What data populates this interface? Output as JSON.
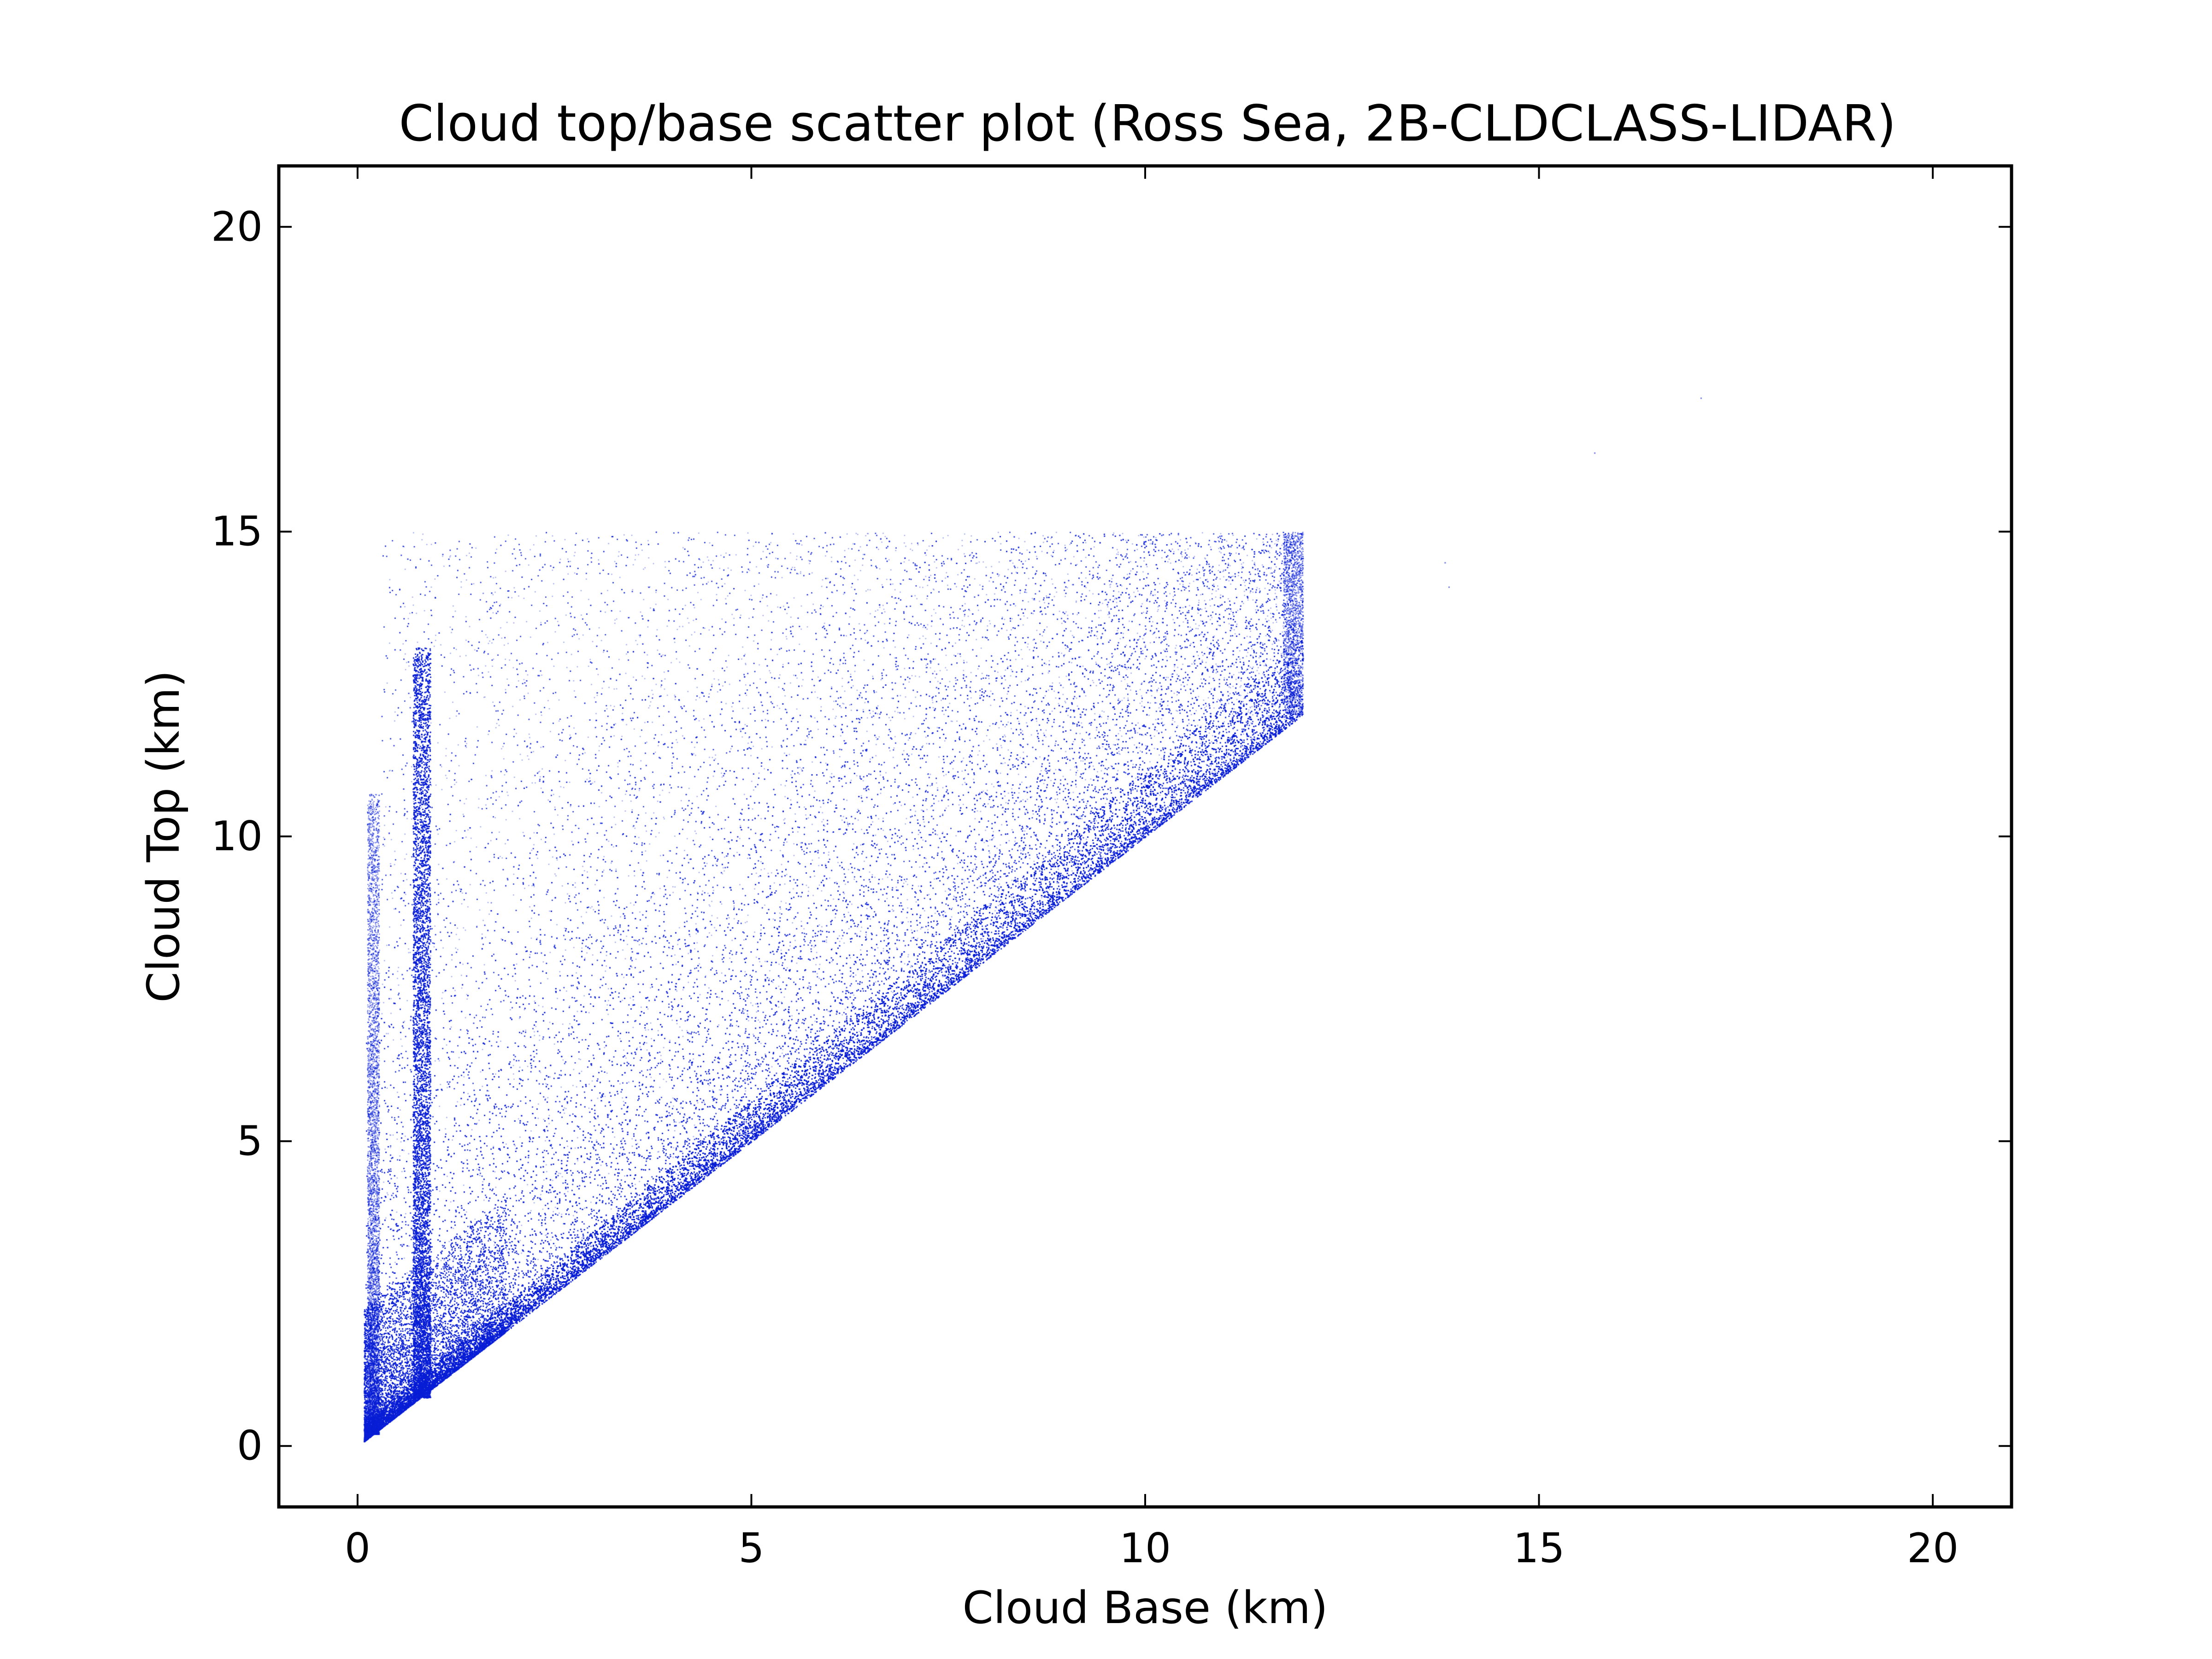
{
  "chart_data": {
    "type": "scatter",
    "title": "Cloud top/base scatter plot (Ross Sea, 2B-CLDCLASS-LIDAR)",
    "xlabel": "Cloud Base (km)",
    "ylabel": "Cloud Top (km)",
    "xlim": [
      -1,
      21
    ],
    "ylim": [
      -1,
      21
    ],
    "xticks": [
      0,
      5,
      10,
      15,
      20
    ],
    "yticks": [
      0,
      5,
      10,
      15,
      20
    ],
    "xtick_labels": [
      "0",
      "5",
      "10",
      "15",
      "20"
    ],
    "ytick_labels": [
      "0",
      "5",
      "10",
      "15",
      "20"
    ],
    "grid": false,
    "legend": "none",
    "marker_color": "#0a1fd6",
    "density_regions": [
      {
        "description": "dense band just above diagonal",
        "x": [
          0.1,
          12.0
        ],
        "y_min_equals_x": true,
        "band_width_km": [
          0.3,
          1.2
        ],
        "density": "high"
      },
      {
        "description": "vertical column near base 0.8 km",
        "x": [
          0.7,
          0.95
        ],
        "y": [
          0.5,
          13.2
        ],
        "density": "high"
      },
      {
        "description": "thin vertical column near base 0.2 km",
        "x": [
          0.1,
          0.3
        ],
        "y": [
          0.1,
          11.0
        ],
        "density": "medium"
      },
      {
        "description": "sparse fill between diagonal and 15 km",
        "x": [
          0.3,
          12.0
        ],
        "y_max": 15.0,
        "density": "low"
      },
      {
        "description": "vertical edge at base 12 km",
        "x": [
          11.8,
          12.0
        ],
        "y": [
          12.0,
          15.0
        ],
        "density": "medium"
      }
    ],
    "outliers": [
      {
        "x": 13.8,
        "y": 14.5
      },
      {
        "x": 13.85,
        "y": 14.1
      },
      {
        "x": 15.7,
        "y": 16.3
      },
      {
        "x": 17.05,
        "y": 17.2
      }
    ]
  }
}
